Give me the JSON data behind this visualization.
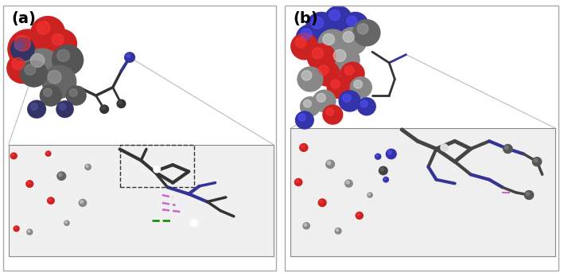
{
  "figure_width": 7.09,
  "figure_height": 3.43,
  "dpi": 100,
  "bg_color": "#ffffff",
  "panel_border_color": "#aaaaaa",
  "label_a": "(a)",
  "label_b": "(b)",
  "label_fontsize": 14,
  "label_fontweight": "bold"
}
